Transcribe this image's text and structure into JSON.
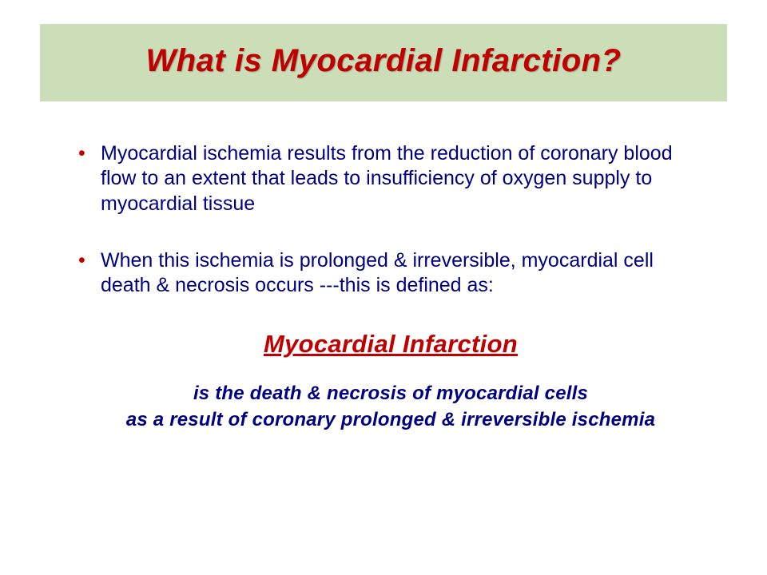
{
  "slide": {
    "background_color": "#ffffff",
    "title_band_color": "#cbdeb7",
    "accent_color": "#c00000",
    "body_color": "#000080"
  },
  "title": "What is Myocardial Infarction?",
  "bullets": [
    "Myocardial ischemia results from the reduction of coronary blood flow to an extent that leads to insufficiency of oxygen supply to myocardial tissue",
    "When this ischemia is prolonged & irreversible, myocardial cell death & necrosis occurs ---this is defined as:"
  ],
  "emphasis": {
    "heading": "Myocardial Infarction",
    "line1": "is the death & necrosis of myocardial cells",
    "line2": "as a result of coronary prolonged & irreversible ischemia"
  }
}
